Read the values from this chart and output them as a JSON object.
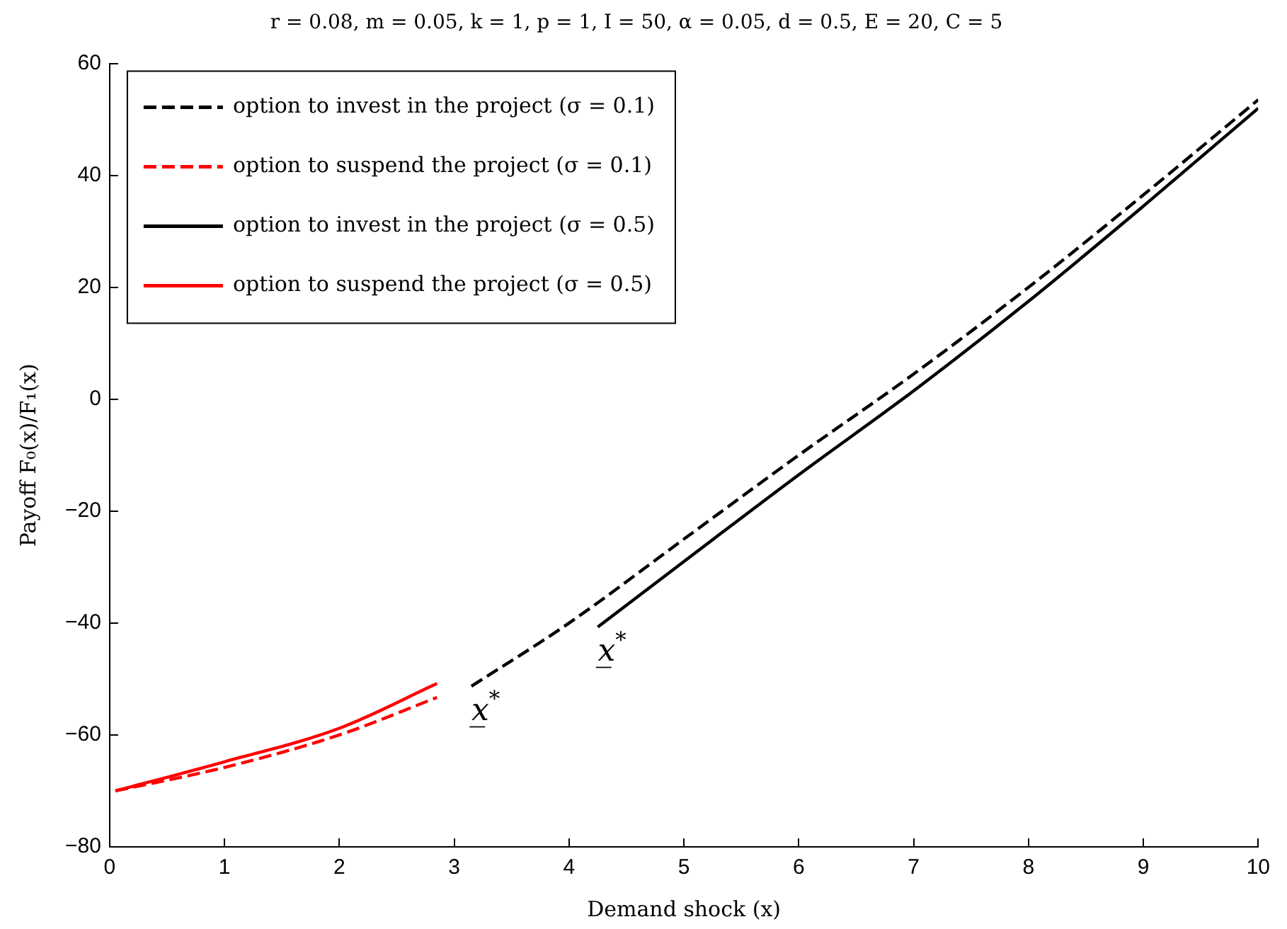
{
  "chart_data": {
    "type": "line",
    "title": "r = 0.08, m = 0.05, k = 1, p = 1, I = 50, α = 0.05, d = 0.5, E = 20, C = 5",
    "xlabel": "Demand shock (x)",
    "ylabel": "Payoff F₀(x)/F₁(x)",
    "xlim": [
      0,
      10
    ],
    "xticks": [
      0,
      1,
      2,
      3,
      4,
      5,
      6,
      7,
      8,
      9,
      10
    ],
    "ylim": [
      -80,
      60
    ],
    "yticks": [
      -80,
      -60,
      -40,
      -20,
      0,
      20,
      40,
      60
    ],
    "grid": false,
    "legend": "top left",
    "marker": "none",
    "series": [
      {
        "name": "option to invest in the project (σ = 0.1)",
        "color": "#000000",
        "line_style": "dashed",
        "x": [
          3.15,
          4,
          5,
          6,
          7,
          8,
          9,
          10
        ],
        "values": [
          -51.3,
          -40,
          -25,
          -10,
          4.5,
          20,
          36.5,
          53.5
        ]
      },
      {
        "name": "option to suspend the project (σ = 0.1)",
        "color": "#ff0000",
        "line_style": "dashed",
        "x": [
          0.05,
          1,
          2,
          2.85
        ],
        "values": [
          -70,
          -65.8,
          -60,
          -53.3
        ]
      },
      {
        "name": "option to invest in the project (σ = 0.5)",
        "color": "#000000",
        "line_style": "solid",
        "x": [
          4.25,
          5,
          6,
          7,
          8,
          9,
          10
        ],
        "values": [
          -40.7,
          -29,
          -13.5,
          1.5,
          17.5,
          34.5,
          52
        ]
      },
      {
        "name": "option to suspend the project (σ = 0.5)",
        "color": "#ff0000",
        "line_style": "solid",
        "x": [
          0.05,
          1,
          2,
          2.85
        ],
        "values": [
          -70,
          -64.8,
          -58.8,
          -50.8
        ]
      }
    ],
    "annotations": [
      {
        "text": "x̲$^{*}$",
        "x": 3.15,
        "y": -51.3
      },
      {
        "text": "x̲$^{*}$",
        "x": 4.25,
        "y": -40.7
      }
    ]
  }
}
